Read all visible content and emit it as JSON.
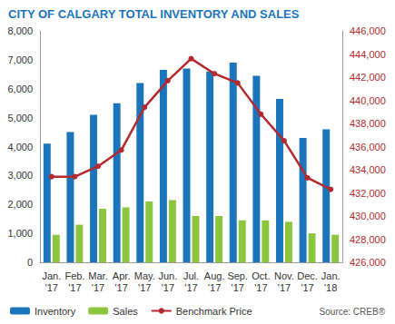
{
  "chart_data": {
    "type": "bar",
    "title": "CITY OF CALGARY TOTAL INVENTORY AND SALES",
    "annotations": [
      "Source: CREB®"
    ],
    "categories": [
      "Jan.\n'17",
      "Feb.\n'17",
      "Mar.\n'17",
      "Apr.\n'17",
      "May.\n'17",
      "Jun.\n'17",
      "Jul.\n'17",
      "Aug.\n'17",
      "Sep.\n'17",
      "Oct.\n'17",
      "Nov.\n'17",
      "Dec.\n'17",
      "Jan.\n'18"
    ],
    "series": [
      {
        "name": "Inventory",
        "type": "bar",
        "color": "#1b75bb",
        "values": [
          4100,
          4500,
          5100,
          5500,
          6200,
          6650,
          6700,
          6600,
          6900,
          6450,
          5650,
          4300,
          4600
        ]
      },
      {
        "name": "Sales",
        "type": "bar",
        "color": "#8cc63f",
        "values": [
          950,
          1300,
          1850,
          1900,
          2100,
          2150,
          1600,
          1600,
          1450,
          1450,
          1400,
          1000,
          950
        ]
      },
      {
        "name": "Benchmark Price",
        "type": "line",
        "axis": "y2",
        "color": "#b22a2e",
        "marker": "circle",
        "line_style": "solid",
        "values": [
          433400,
          433400,
          434300,
          435700,
          439400,
          441700,
          443600,
          442300,
          441500,
          438800,
          436500,
          433300,
          432300
        ]
      }
    ],
    "ylim": [
      0,
      8000
    ],
    "yticks": [
      0,
      {
        "value": 1000,
        "label": "1,000"
      },
      {
        "value": 2000,
        "label": "2,000"
      },
      {
        "value": 3000,
        "label": "3,000"
      },
      {
        "value": 4000,
        "label": "4,000"
      },
      {
        "value": 5000,
        "label": "5,000"
      },
      {
        "value": 6000,
        "label": "6,000"
      },
      {
        "value": 7000,
        "label": "7,000"
      },
      {
        "value": 8000,
        "label": "8,000"
      }
    ],
    "y2lim": [
      426000,
      446000
    ],
    "y2ticks": [
      {
        "value": 426000,
        "label": "426,000"
      },
      {
        "value": 428000,
        "label": "428,000"
      },
      {
        "value": 430000,
        "label": "430,000"
      },
      {
        "value": 432000,
        "label": "432,000"
      },
      {
        "value": 434000,
        "label": "434,000"
      },
      {
        "value": 436000,
        "label": "436,000"
      },
      {
        "value": 438000,
        "label": "438,000"
      },
      {
        "value": 440000,
        "label": "440,000"
      },
      {
        "value": 442000,
        "label": "442,000"
      },
      {
        "value": 444000,
        "label": "444,000"
      },
      {
        "value": 446000,
        "label": "446,000"
      }
    ],
    "grid": false,
    "legend": "bottom-left"
  }
}
